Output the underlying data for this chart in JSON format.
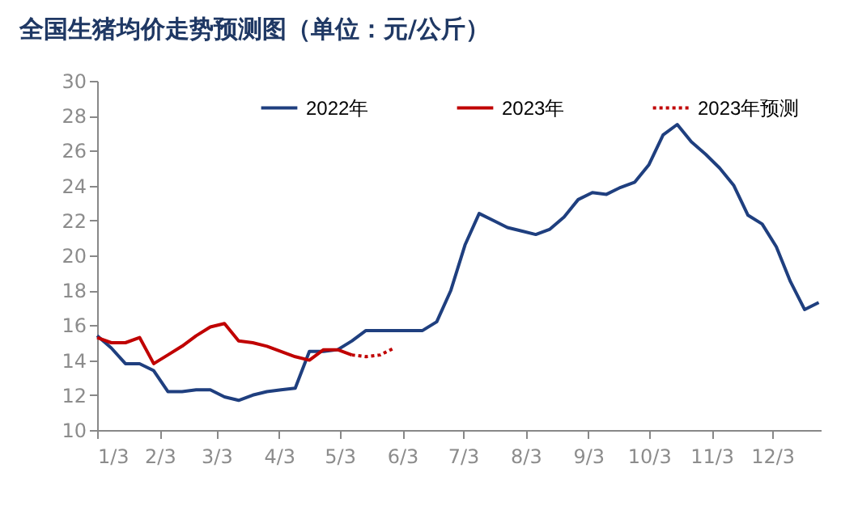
{
  "chart_data": {
    "type": "line",
    "title": "全国生猪均价走势预测图（单位：元/公斤）",
    "xlim": [
      "--01-03",
      "--12-27"
    ],
    "xticks": [
      {
        "value": "--01-03",
        "label": "1/3"
      },
      {
        "value": "--02-03",
        "label": "2/3"
      },
      {
        "value": "--03-03",
        "label": "3/3"
      },
      {
        "value": "--04-03",
        "label": "4/3"
      },
      {
        "value": "--05-03",
        "label": "5/3"
      },
      {
        "value": "--06-03",
        "label": "6/3"
      },
      {
        "value": "--07-03",
        "label": "7/3"
      },
      {
        "value": "--08-03",
        "label": "8/3"
      },
      {
        "value": "--09-03",
        "label": "9/3"
      },
      {
        "value": "--10-03",
        "label": "10/3"
      },
      {
        "value": "--11-03",
        "label": "11/3"
      },
      {
        "value": "--12-03",
        "label": "12/3"
      }
    ],
    "ylim": [
      10,
      30
    ],
    "yticks": [
      10,
      12,
      14,
      16,
      18,
      20,
      22,
      24,
      26,
      28,
      30
    ],
    "grid": false,
    "legend": "top",
    "marker": "none",
    "series": [
      {
        "name": "2022年",
        "color": "#1f3f7f",
        "line_style": "solid",
        "x": [
          "--01-03",
          "--01-10",
          "--01-17",
          "--01-24",
          "--01-31",
          "--02-07",
          "--02-14",
          "--02-21",
          "--02-28",
          "--03-07",
          "--03-14",
          "--03-21",
          "--03-28",
          "--04-04",
          "--04-11",
          "--04-18",
          "--04-25",
          "--05-02",
          "--05-09",
          "--05-16",
          "--05-23",
          "--05-30",
          "--06-06",
          "--06-13",
          "--06-20",
          "--06-27",
          "--07-04",
          "--07-11",
          "--07-18",
          "--07-25",
          "--08-01",
          "--08-08",
          "--08-15",
          "--08-22",
          "--08-29",
          "--09-05",
          "--09-12",
          "--09-19",
          "--09-26",
          "--10-03",
          "--10-10",
          "--10-17",
          "--10-24",
          "--10-31",
          "--11-07",
          "--11-14",
          "--11-21",
          "--11-28",
          "--12-05",
          "--12-12",
          "--12-19",
          "--12-26"
        ],
        "values": [
          15.4,
          14.7,
          13.8,
          13.8,
          13.4,
          12.2,
          12.2,
          12.3,
          12.3,
          11.9,
          11.7,
          12.0,
          12.2,
          12.3,
          12.4,
          14.5,
          14.5,
          14.6,
          15.1,
          15.7,
          15.7,
          15.7,
          15.7,
          15.7,
          16.2,
          18.0,
          20.6,
          22.4,
          22.0,
          21.6,
          21.4,
          21.2,
          21.5,
          22.2,
          23.2,
          23.6,
          23.5,
          23.9,
          24.2,
          25.2,
          26.9,
          27.5,
          26.5,
          25.8,
          25.0,
          24.0,
          22.3,
          21.8,
          20.5,
          18.5,
          16.9,
          17.3
        ]
      },
      {
        "name": "2023年",
        "color": "#c00000",
        "line_style": "solid",
        "x": [
          "--01-03",
          "--01-10",
          "--01-17",
          "--01-24",
          "--01-31",
          "--02-07",
          "--02-14",
          "--02-21",
          "--02-28",
          "--03-07",
          "--03-14",
          "--03-21",
          "--03-28",
          "--04-04",
          "--04-11",
          "--04-18",
          "--04-25",
          "--05-02",
          "--05-09"
        ],
        "values": [
          15.3,
          15.0,
          15.0,
          15.3,
          13.8,
          14.3,
          14.8,
          15.4,
          15.9,
          16.1,
          15.1,
          15.0,
          14.8,
          14.5,
          14.2,
          14.0,
          14.6,
          14.6,
          14.3
        ]
      },
      {
        "name": "2023年预测",
        "color": "#c00000",
        "line_style": "dotted",
        "x": [
          "--05-09",
          "--05-16",
          "--05-23",
          "--05-30"
        ],
        "values": [
          14.3,
          14.2,
          14.3,
          14.7
        ]
      }
    ]
  }
}
